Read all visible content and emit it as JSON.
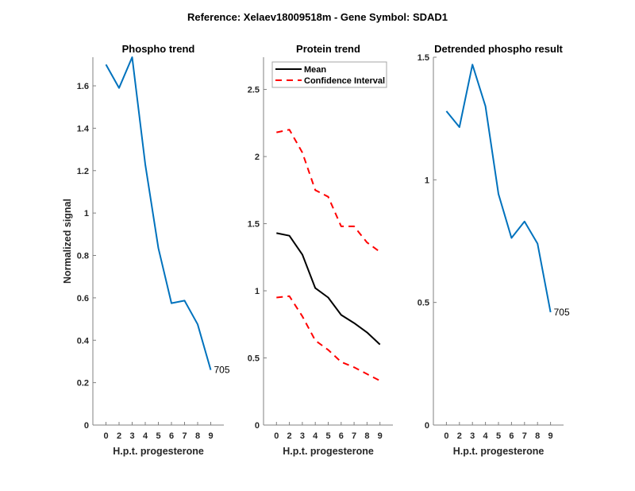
{
  "figure": {
    "suptitle": "Reference:  Xelaev18009518m - Gene Symbol:  SDAD1"
  },
  "colors": {
    "phospho_line": "#0072BD",
    "mean_line": "#000000",
    "ci_line": "#FF0000",
    "axis": "#808080",
    "text": "#262626"
  },
  "chart_data": [
    {
      "type": "line",
      "title": "Phospho trend",
      "xlabel": "H.p.t. progesterone",
      "ylabel": "Normalized signal",
      "x_positions": [
        1,
        2,
        3,
        4,
        5,
        6,
        7,
        8,
        9
      ],
      "categories": [
        "0",
        "2",
        "3",
        "4",
        "5",
        "6",
        "7",
        "8",
        "9"
      ],
      "xlim": [
        0,
        10
      ],
      "ylim": [
        0,
        1.735
      ],
      "yticks": [
        0,
        0.2,
        0.4,
        0.6,
        0.8,
        1,
        1.2,
        1.4,
        1.6
      ],
      "ytick_labels": [
        "0",
        "0.2",
        "0.4",
        "0.6",
        "0.8",
        "1",
        "1.2",
        "1.4",
        "1.6"
      ],
      "grid": false,
      "series": [
        {
          "name": "Phospho",
          "style": "solid",
          "color_key": "phospho_line",
          "values": [
            1.7,
            1.59,
            1.735,
            1.23,
            0.835,
            0.575,
            0.587,
            0.475,
            0.26
          ]
        }
      ],
      "annotation": {
        "text": "705",
        "at_index": 8
      }
    },
    {
      "type": "line",
      "title": "Protein trend",
      "xlabel": "H.p.t. progesterone",
      "ylabel": "",
      "x_positions": [
        1,
        2,
        3,
        4,
        5,
        6,
        7,
        8,
        9
      ],
      "categories": [
        "0",
        "2",
        "3",
        "4",
        "5",
        "6",
        "7",
        "8",
        "9"
      ],
      "xlim": [
        0,
        10
      ],
      "ylim": [
        0,
        2.74
      ],
      "yticks": [
        0,
        0.5,
        1,
        1.5,
        2,
        2.5
      ],
      "ytick_labels": [
        "0",
        "0.5",
        "1",
        "1.5",
        "2",
        "2.5"
      ],
      "grid": false,
      "legend": {
        "placement": "top-left",
        "entries": [
          "Mean",
          "Confidence Interval"
        ]
      },
      "series": [
        {
          "name": "Mean",
          "style": "solid",
          "color_key": "mean_line",
          "values": [
            1.43,
            1.41,
            1.27,
            1.02,
            0.95,
            0.82,
            0.76,
            0.69,
            0.6
          ]
        },
        {
          "name": "Confidence Interval (upper)",
          "style": "dashed",
          "color_key": "ci_line",
          "values": [
            2.18,
            2.2,
            2.03,
            1.75,
            1.7,
            1.48,
            1.48,
            1.36,
            1.29
          ]
        },
        {
          "name": "Confidence Interval (lower)",
          "style": "dashed",
          "color_key": "ci_line",
          "values": [
            0.95,
            0.96,
            0.81,
            0.63,
            0.56,
            0.47,
            0.43,
            0.38,
            0.33
          ]
        }
      ]
    },
    {
      "type": "line",
      "title": "Detrended phospho result",
      "xlabel": "H.p.t. progesterone",
      "ylabel": "",
      "x_positions": [
        1,
        2,
        3,
        4,
        5,
        6,
        7,
        8,
        9
      ],
      "categories": [
        "0",
        "2",
        "3",
        "4",
        "5",
        "6",
        "7",
        "8",
        "9"
      ],
      "xlim": [
        0,
        10
      ],
      "ylim": [
        0,
        1.5
      ],
      "yticks": [
        0,
        0.5,
        1,
        1.5
      ],
      "ytick_labels": [
        "0",
        "0.5",
        "1",
        "1.5"
      ],
      "grid": false,
      "series": [
        {
          "name": "Detrended phospho",
          "style": "solid",
          "color_key": "phospho_line",
          "values": [
            1.28,
            1.215,
            1.47,
            1.3,
            0.942,
            0.763,
            0.83,
            0.74,
            0.46
          ]
        }
      ],
      "annotation": {
        "text": "705",
        "at_index": 8
      }
    }
  ]
}
